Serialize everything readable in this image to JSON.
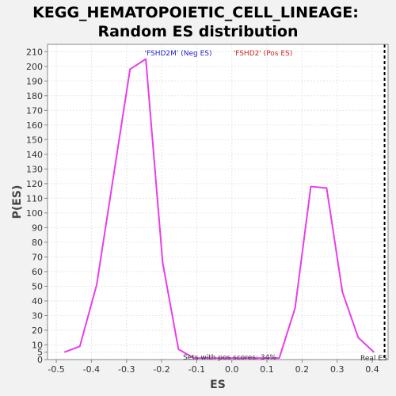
{
  "chart_data": {
    "type": "line",
    "title_line1": "KEGG_HEMATOPOIETIC_CELL_LINEAGE:",
    "title_line2": "Random ES distribution",
    "xlabel": "ES",
    "ylabel": "P(ES)",
    "xlim": [
      -0.525,
      0.445
    ],
    "ylim": [
      0,
      215
    ],
    "x_ticks": [
      "-0.5",
      "-0.4",
      "-0.3",
      "-0.2",
      "-0.1",
      "0.0",
      "0.1",
      "0.2",
      "0.3",
      "0.4"
    ],
    "y_ticks": [
      0,
      5,
      10,
      20,
      30,
      40,
      50,
      60,
      70,
      80,
      90,
      100,
      110,
      120,
      130,
      140,
      150,
      160,
      170,
      180,
      190,
      200,
      210
    ],
    "grid": true,
    "series": [
      {
        "color": "#e83ee8",
        "x": [
          -0.477,
          -0.433,
          -0.385,
          -0.29,
          -0.245,
          -0.197,
          -0.152,
          -0.108,
          0.135,
          0.18,
          0.225,
          0.27,
          0.315,
          0.36,
          0.405
        ],
        "y": [
          5,
          9,
          51,
          198,
          205,
          66,
          7,
          1,
          1,
          35,
          118,
          117,
          46,
          15,
          5
        ]
      }
    ],
    "real_es_x": 0.435,
    "legend_neg": "'FSHD2M' (Neg ES)",
    "legend_pos": "'FSHD2' (Pos ES)",
    "legend_neg_color": "#2222cc",
    "legend_pos_color": "#cc2222",
    "annotation_pos_scores": "Sets with pos scores: 34%",
    "annotation_real_es": "Real ES"
  }
}
